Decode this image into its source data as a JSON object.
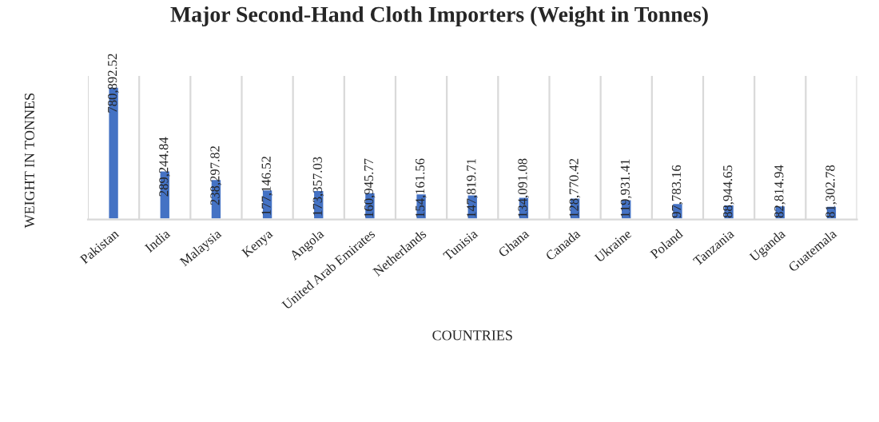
{
  "chart_data": {
    "type": "bar",
    "title": "Major Second-Hand Cloth Importers (Weight in Tonnes)",
    "xlabel": "COUNTRIES",
    "ylabel": "WEIGHT IN TONNES",
    "categories": [
      "Pakistan",
      "India",
      "Malaysia",
      "Kenya",
      "Angola",
      "United Arab Emirates",
      "Netherlands",
      "Tunisia",
      "Ghana",
      "Canada",
      "Ukraine",
      "Poland",
      "Tanzania",
      "Uganda",
      "Guatemala"
    ],
    "values": [
      780892.52,
      289244.84,
      238297.82,
      177146.52,
      173357.03,
      160945.77,
      154161.56,
      147819.71,
      134091.08,
      128770.42,
      119931.41,
      97783.16,
      88944.65,
      82814.94,
      81302.78
    ],
    "value_labels": [
      "780,892.52",
      "289,244.84",
      "238,297.82",
      "177,146.52",
      "173,357.03",
      "160,945.77",
      "154,161.56",
      "147,819.71",
      "134,091.08",
      "128,770.42",
      "119,931.41",
      "97,783.16",
      "88,944.65",
      "82,814.94",
      "81,302.78"
    ],
    "color": "#4472c4",
    "grid": "x",
    "tick_labels": "x",
    "legend": false
  }
}
